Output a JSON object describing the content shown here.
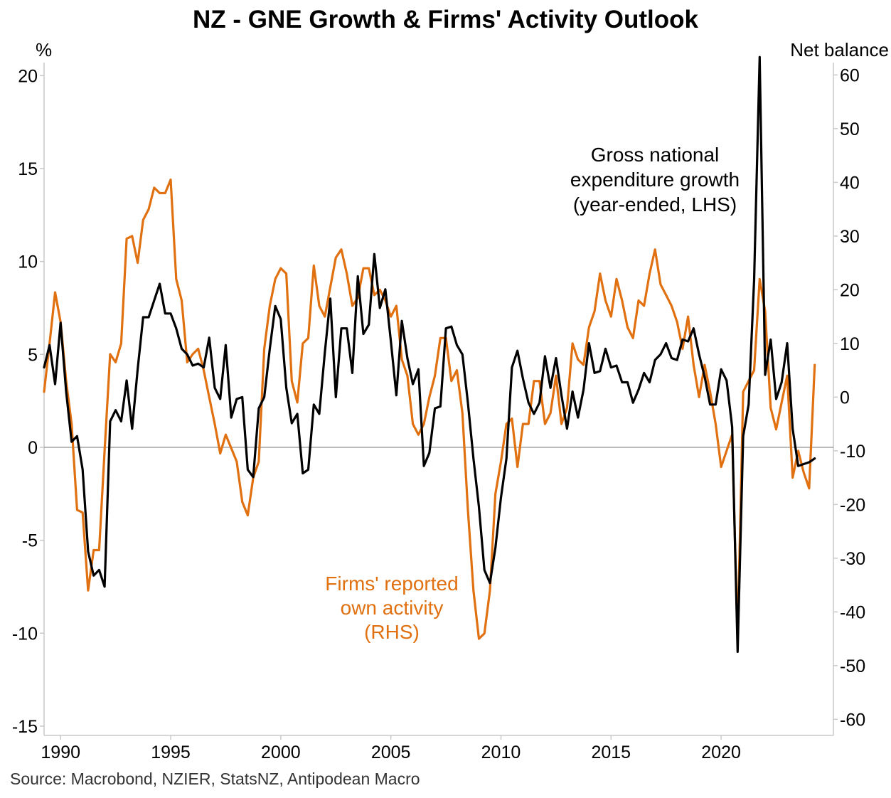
{
  "title": "NZ - GNE Growth & Firms' Activity Outlook",
  "source": "Source: Macrobond, NZIER, StatsNZ, Antipodean Macro",
  "chart_data": {
    "type": "line",
    "title": "NZ - GNE Growth & Firms' Activity Outlook",
    "left_axis": {
      "label": "%",
      "range": [
        -15.5,
        20.7
      ],
      "ticks": [
        20,
        15,
        10,
        5,
        0,
        -5,
        -10,
        -15
      ]
    },
    "right_axis": {
      "label": "Net balance",
      "range": [
        -63,
        62.3
      ],
      "ticks": [
        60,
        50,
        40,
        30,
        20,
        10,
        0,
        -10,
        -20,
        -30,
        -40,
        -50,
        -60
      ]
    },
    "x_axis": {
      "range": [
        1989.25,
        2025.1
      ],
      "ticks": [
        1990,
        1995,
        2000,
        2005,
        2010,
        2015,
        2020
      ]
    },
    "zero_line": 0,
    "colors": {
      "gne": "#000000",
      "activity": "#E07010",
      "zero_line": "#808080",
      "axis": "#C8C8C8"
    },
    "annotations": {
      "gne": [
        "Gross national",
        "expenditure growth",
        "(year-ended, LHS)"
      ],
      "activity": [
        "Firms' reported",
        "own activity",
        "(RHS)"
      ]
    },
    "series": [
      {
        "name": "Gross national expenditure growth (year-ended, LHS)",
        "axis": "left",
        "start": 1989.25,
        "step": 0.25,
        "values": [
          4.3,
          5.5,
          3.4,
          6.7,
          3.0,
          0.3,
          0.6,
          -1.2,
          -5.6,
          -6.9,
          -6.6,
          -7.5,
          1.4,
          2.0,
          1.4,
          3.6,
          1.0,
          4.2,
          7.0,
          7.0,
          7.9,
          8.8,
          7.2,
          7.2,
          6.4,
          5.3,
          5.0,
          4.4,
          4.5,
          4.3,
          5.9,
          3.2,
          2.6,
          5.5,
          1.6,
          2.6,
          2.7,
          -1.2,
          -1.6,
          2.1,
          2.7,
          5.3,
          7.6,
          6.9,
          3.2,
          1.3,
          1.8,
          -1.4,
          -1.2,
          2.3,
          1.8,
          5.1,
          8.0,
          2.7,
          6.4,
          6.4,
          4.0,
          9.2,
          6.1,
          6.6,
          10.4,
          7.5,
          8.5,
          5.7,
          2.8,
          6.8,
          4.8,
          3.4,
          4.2,
          -1.0,
          -0.3,
          2.1,
          2.2,
          6.4,
          6.5,
          5.5,
          5.0,
          2.4,
          -0.6,
          -3.2,
          -6.6,
          -7.3,
          -5.4,
          -2.7,
          -0.6,
          4.3,
          5.2,
          3.7,
          2.4,
          1.8,
          2.4,
          4.9,
          3.2,
          4.8,
          2.8,
          1.0,
          3.0,
          1.6,
          3.1,
          5.6,
          4.0,
          4.1,
          5.3,
          4.3,
          4.4,
          3.5,
          3.5,
          2.4,
          3.1,
          4.0,
          3.5,
          4.7,
          5.0,
          5.6,
          4.8,
          4.7,
          5.8,
          5.7,
          6.4,
          5.0,
          3.8,
          2.3,
          2.3,
          4.2,
          3.6,
          1.1,
          -11.0,
          0.6,
          2.3,
          9.0,
          21.0,
          3.9,
          5.8,
          2.6,
          3.5,
          5.6,
          1.0,
          -1.0,
          -0.9,
          -0.8,
          -0.6
        ]
      },
      {
        "name": "Firms' reported own activity (RHS)",
        "axis": "right",
        "start": 1989.25,
        "step": 0.25,
        "values": [
          1,
          10,
          19.5,
          14,
          3,
          -5,
          -21,
          -21.5,
          -36,
          -28.5,
          -28.5,
          -10,
          8,
          6.5,
          10,
          29.5,
          30,
          25,
          33,
          35,
          39,
          38,
          38,
          40.5,
          22,
          18,
          6.5,
          8,
          9,
          5,
          0,
          -5,
          -10.5,
          -7,
          -9.5,
          -12,
          -19.5,
          -22,
          -15,
          -12,
          9,
          17,
          22,
          24,
          23,
          3,
          -1,
          10,
          11,
          24.5,
          17,
          15,
          20.5,
          26,
          27.5,
          23,
          17,
          18.5,
          24,
          24,
          19,
          20,
          18,
          15,
          17,
          7,
          4,
          -5,
          -7,
          -5,
          0,
          4,
          11,
          11,
          3,
          5,
          -3,
          -21,
          -36,
          -45,
          -44,
          -36,
          -18,
          -12,
          -5,
          -4,
          -13,
          -5,
          -5,
          3,
          3,
          -5,
          -3,
          4,
          -5,
          -2,
          10,
          7,
          6,
          13,
          16,
          23,
          18,
          15,
          22,
          18,
          13,
          11,
          18,
          17,
          23,
          27.5,
          21,
          19,
          17,
          14,
          9,
          15,
          6,
          0,
          6,
          1,
          -5,
          -13,
          -10,
          -7,
          -45,
          1,
          3,
          5,
          22,
          16,
          -2,
          -6,
          -1,
          4,
          -15,
          -10,
          -14,
          -17,
          6
        ]
      }
    ]
  }
}
